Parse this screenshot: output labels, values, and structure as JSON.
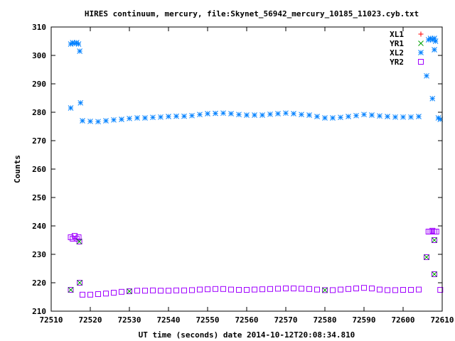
{
  "chart_data": {
    "type": "scatter",
    "title": "HIRES continuum, mercury, file:Skynet_56942_mercury_10185_11023.cyb.txt",
    "xlabel": "UT time (seconds) date 2014-10-12T20:08:34.810",
    "ylabel": "Counts",
    "xlim": [
      72510,
      72610
    ],
    "ylim": [
      210,
      310
    ],
    "xticks": [
      72510,
      72520,
      72530,
      72540,
      72550,
      72560,
      72570,
      72580,
      72590,
      72600,
      72610
    ],
    "yticks": [
      210,
      220,
      230,
      240,
      250,
      260,
      270,
      280,
      290,
      300,
      310
    ],
    "legend_position": "top-right",
    "series": [
      {
        "name": "XL1",
        "color": "#ff0000",
        "marker": "plus",
        "points": []
      },
      {
        "name": "YR1",
        "color": "#00a000",
        "marker": "cross",
        "points": [
          [
            72515,
            217.5
          ],
          [
            72517.3,
            220
          ],
          [
            72517.2,
            234.5
          ],
          [
            72606,
            229
          ],
          [
            72608,
            223
          ],
          [
            72530,
            217
          ],
          [
            72580,
            217.4
          ],
          [
            72608,
            235
          ]
        ]
      },
      {
        "name": "XL2",
        "color": "#0080ff",
        "marker": "star",
        "points": [
          [
            72515,
            281.5
          ],
          [
            72515,
            304
          ],
          [
            72515.5,
            304.5
          ],
          [
            72516,
            304.2
          ],
          [
            72516.5,
            304.5
          ],
          [
            72517,
            304
          ],
          [
            72517.3,
            301.5
          ],
          [
            72517.5,
            283.3
          ],
          [
            72518,
            277
          ],
          [
            72520,
            276.8
          ],
          [
            72522,
            276.7
          ],
          [
            72524,
            277
          ],
          [
            72526,
            277.3
          ],
          [
            72528,
            277.5
          ],
          [
            72530,
            277.8
          ],
          [
            72532,
            278
          ],
          [
            72534,
            278
          ],
          [
            72536,
            278.2
          ],
          [
            72538,
            278.3
          ],
          [
            72540,
            278.5
          ],
          [
            72542,
            278.6
          ],
          [
            72544,
            278.6
          ],
          [
            72546,
            278.8
          ],
          [
            72548,
            279.2
          ],
          [
            72550,
            279.5
          ],
          [
            72552,
            279.6
          ],
          [
            72554,
            279.7
          ],
          [
            72556,
            279.5
          ],
          [
            72558,
            279.2
          ],
          [
            72560,
            279
          ],
          [
            72562,
            279
          ],
          [
            72564,
            279
          ],
          [
            72566,
            279.3
          ],
          [
            72568,
            279.5
          ],
          [
            72570,
            279.7
          ],
          [
            72572,
            279.5
          ],
          [
            72574,
            279.2
          ],
          [
            72576,
            279
          ],
          [
            72578,
            278.5
          ],
          [
            72580,
            278
          ],
          [
            72582,
            278
          ],
          [
            72584,
            278.2
          ],
          [
            72586,
            278.5
          ],
          [
            72588,
            278.8
          ],
          [
            72590,
            279.2
          ],
          [
            72592,
            279
          ],
          [
            72594,
            278.7
          ],
          [
            72596,
            278.5
          ],
          [
            72598,
            278.3
          ],
          [
            72600,
            278.3
          ],
          [
            72602,
            278.3
          ],
          [
            72604,
            278.5
          ],
          [
            72606,
            292.8
          ],
          [
            72606.5,
            305.5
          ],
          [
            72607,
            306
          ],
          [
            72607.5,
            305.5
          ],
          [
            72608,
            306
          ],
          [
            72608.3,
            305
          ],
          [
            72607.5,
            284.8
          ],
          [
            72608,
            302
          ],
          [
            72609,
            278
          ],
          [
            72609.5,
            277.5
          ]
        ]
      },
      {
        "name": "YR2",
        "color": "#a000ff",
        "marker": "square",
        "points": [
          [
            72515,
            217.5
          ],
          [
            72515,
            236
          ],
          [
            72515.5,
            235.5
          ],
          [
            72516,
            236.5
          ],
          [
            72516.5,
            235.5
          ],
          [
            72517,
            236
          ],
          [
            72517.2,
            234.5
          ],
          [
            72517.3,
            220
          ],
          [
            72518,
            215.8
          ],
          [
            72520,
            215.8
          ],
          [
            72522,
            216
          ],
          [
            72524,
            216.2
          ],
          [
            72526,
            216.5
          ],
          [
            72528,
            216.8
          ],
          [
            72530,
            217
          ],
          [
            72532,
            217.2
          ],
          [
            72534,
            217.2
          ],
          [
            72536,
            217.3
          ],
          [
            72538,
            217.2
          ],
          [
            72540,
            217.2
          ],
          [
            72542,
            217.3
          ],
          [
            72544,
            217.3
          ],
          [
            72546,
            217.4
          ],
          [
            72548,
            217.6
          ],
          [
            72550,
            217.7
          ],
          [
            72552,
            217.8
          ],
          [
            72554,
            217.8
          ],
          [
            72556,
            217.6
          ],
          [
            72558,
            217.5
          ],
          [
            72560,
            217.5
          ],
          [
            72562,
            217.6
          ],
          [
            72564,
            217.7
          ],
          [
            72566,
            217.8
          ],
          [
            72568,
            217.9
          ],
          [
            72570,
            218
          ],
          [
            72572,
            218
          ],
          [
            72574,
            217.9
          ],
          [
            72576,
            217.8
          ],
          [
            72578,
            217.6
          ],
          [
            72580,
            217.4
          ],
          [
            72582,
            217.4
          ],
          [
            72584,
            217.6
          ],
          [
            72586,
            217.8
          ],
          [
            72588,
            218
          ],
          [
            72590,
            218.2
          ],
          [
            72592,
            218
          ],
          [
            72594,
            217.6
          ],
          [
            72596,
            217.4
          ],
          [
            72598,
            217.4
          ],
          [
            72600,
            217.5
          ],
          [
            72602,
            217.5
          ],
          [
            72604,
            217.6
          ],
          [
            72606,
            229
          ],
          [
            72606.5,
            238
          ],
          [
            72607,
            238
          ],
          [
            72607.5,
            238.3
          ],
          [
            72608,
            238
          ],
          [
            72608.5,
            238
          ],
          [
            72608,
            235
          ],
          [
            72608,
            223
          ],
          [
            72609.5,
            217.5
          ]
        ]
      }
    ]
  }
}
